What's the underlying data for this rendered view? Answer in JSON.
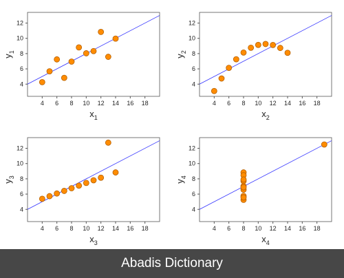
{
  "chart_data": [
    {
      "type": "scatter",
      "xlabel": "x",
      "xlabel_sub": "1",
      "ylabel": "y",
      "ylabel_sub": "1",
      "x": [
        10,
        8,
        13,
        9,
        11,
        14,
        6,
        4,
        12,
        7,
        5
      ],
      "values": [
        8.04,
        6.95,
        7.58,
        8.81,
        8.33,
        9.96,
        7.24,
        4.26,
        10.84,
        4.82,
        5.68
      ],
      "color": "#ff8c00",
      "fit": {
        "x": [
          2,
          20
        ],
        "values": [
          4,
          13
        ],
        "color": "#3333ff"
      },
      "xlim": [
        2,
        20
      ],
      "ylim": [
        2.4,
        13.4
      ],
      "xticks": [
        4,
        6,
        8,
        10,
        12,
        14,
        16,
        18
      ],
      "yticks": [
        4,
        6,
        8,
        10,
        12
      ]
    },
    {
      "type": "scatter",
      "xlabel": "x",
      "xlabel_sub": "2",
      "ylabel": "y",
      "ylabel_sub": "2",
      "x": [
        10,
        8,
        13,
        9,
        11,
        14,
        6,
        4,
        12,
        7,
        5
      ],
      "values": [
        9.14,
        8.14,
        8.74,
        8.77,
        9.26,
        8.1,
        6.13,
        3.1,
        9.13,
        7.26,
        4.74
      ],
      "color": "#ff8c00",
      "fit": {
        "x": [
          2,
          20
        ],
        "values": [
          4,
          13
        ],
        "color": "#3333ff"
      },
      "xlim": [
        2,
        20
      ],
      "ylim": [
        2.4,
        13.4
      ],
      "xticks": [
        4,
        6,
        8,
        10,
        12,
        14,
        16,
        18
      ],
      "yticks": [
        4,
        6,
        8,
        10,
        12
      ]
    },
    {
      "type": "scatter",
      "xlabel": "x",
      "xlabel_sub": "3",
      "ylabel": "y",
      "ylabel_sub": "3",
      "x": [
        10,
        8,
        13,
        9,
        11,
        14,
        6,
        4,
        12,
        7,
        5
      ],
      "values": [
        7.46,
        6.77,
        12.74,
        7.11,
        7.81,
        8.84,
        6.08,
        5.39,
        8.15,
        6.42,
        5.73
      ],
      "color": "#ff8c00",
      "fit": {
        "x": [
          2,
          20
        ],
        "values": [
          4,
          13
        ],
        "color": "#3333ff"
      },
      "xlim": [
        2,
        20
      ],
      "ylim": [
        2.4,
        13.4
      ],
      "xticks": [
        4,
        6,
        8,
        10,
        12,
        14,
        16,
        18
      ],
      "yticks": [
        4,
        6,
        8,
        10,
        12
      ]
    },
    {
      "type": "scatter",
      "xlabel": "x",
      "xlabel_sub": "4",
      "ylabel": "y",
      "ylabel_sub": "4",
      "x": [
        8,
        8,
        8,
        8,
        8,
        8,
        8,
        19,
        8,
        8,
        8
      ],
      "values": [
        6.58,
        5.76,
        7.71,
        8.84,
        8.47,
        7.04,
        5.25,
        12.5,
        5.56,
        7.91,
        6.89
      ],
      "color": "#ff8c00",
      "fit": {
        "x": [
          2,
          20
        ],
        "values": [
          4,
          13
        ],
        "color": "#3333ff"
      },
      "xlim": [
        2,
        20
      ],
      "ylim": [
        2.4,
        13.4
      ],
      "xticks": [
        4,
        6,
        8,
        10,
        12,
        14,
        16,
        18
      ],
      "yticks": [
        4,
        6,
        8,
        10,
        12
      ]
    }
  ],
  "footer": "Abadis Dictionary"
}
